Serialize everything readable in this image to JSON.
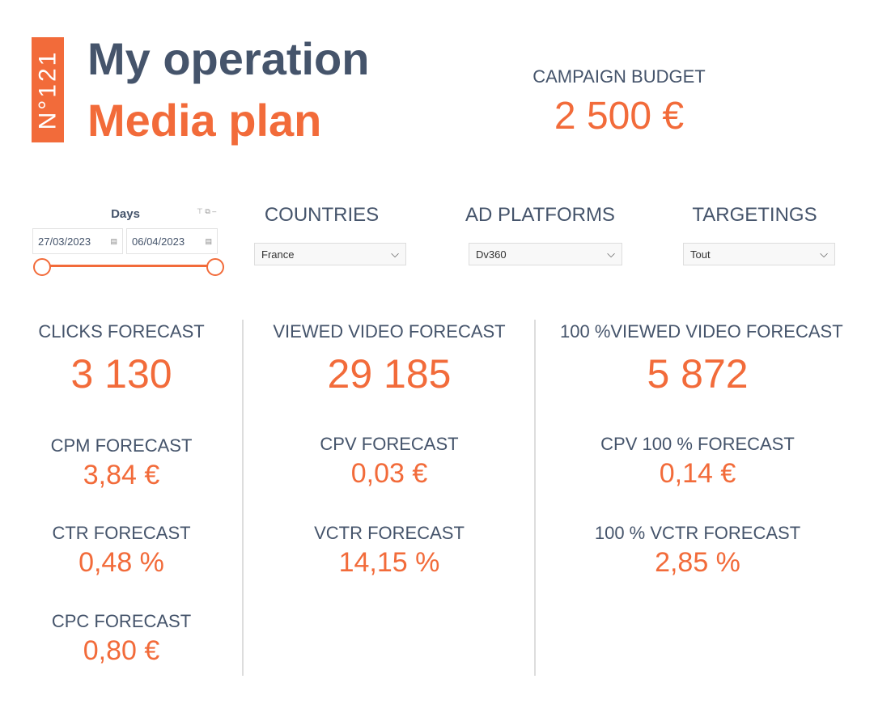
{
  "header": {
    "badge": "N°121",
    "title": "My operation",
    "subtitle": "Media plan"
  },
  "budget": {
    "label": "CAMPAIGN BUDGET",
    "value": "2 500 €"
  },
  "filters": {
    "days_label": "Days",
    "date_start": "27/03/2023",
    "date_end": "06/04/2023",
    "countries_label": "COUNTRIES",
    "countries_value": "France",
    "platforms_label": "AD PLATFORMS",
    "platforms_value": "Dv360",
    "targetings_label": "TARGETINGS",
    "targetings_value": "Tout"
  },
  "col1": {
    "main_label": "CLICKS FORECAST",
    "main_value": "3 130",
    "items": [
      {
        "label": "CPM FORECAST",
        "value": "3,84 €"
      },
      {
        "label": "CTR FORECAST",
        "value": "0,48 %"
      },
      {
        "label": "CPC FORECAST",
        "value": "0,80 €"
      }
    ]
  },
  "col2": {
    "main_label": "VIEWED VIDEO FORECAST",
    "main_value": "29 185",
    "items": [
      {
        "label": "CPV FORECAST",
        "value": "0,03 €"
      },
      {
        "label": "VCTR FORECAST",
        "value": "14,15 %"
      }
    ]
  },
  "col3": {
    "main_label": "100 %VIEWED VIDEO FORECAST",
    "main_value": "5 872",
    "items": [
      {
        "label": "CPV 100 % FORECAST",
        "value": "0,14 €"
      },
      {
        "label": "100 % VCTR FORECAST",
        "value": "2,85 %"
      }
    ]
  }
}
